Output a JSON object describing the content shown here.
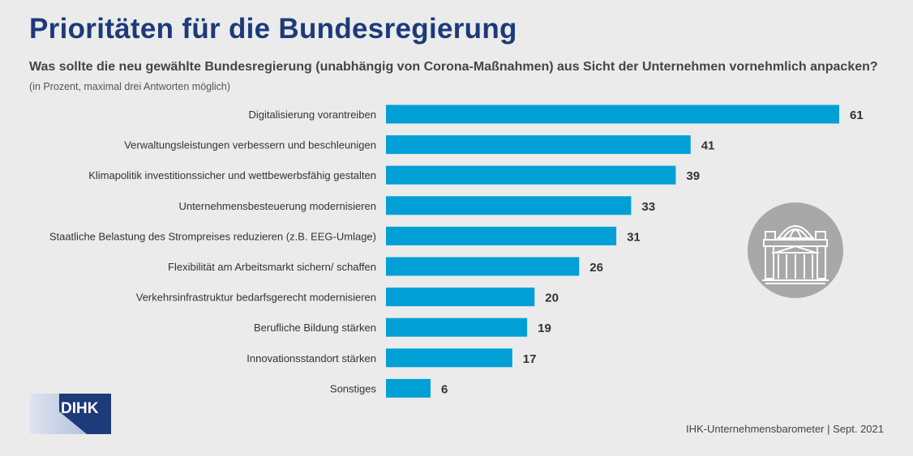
{
  "header": {
    "title": "Prioritäten für die Bundesregierung",
    "subtitle": "Was sollte die neu gewählte Bundesregierung (unabhängig von Corona-Maßnahmen) aus Sicht der Unternehmen vornehmlich anpacken?",
    "note": "(in Prozent, maximal drei Antworten möglich)"
  },
  "footer": {
    "source": "IHK-Unternehmensbarometer | Sept. 2021"
  },
  "logo": {
    "text": "DIHK"
  },
  "emblem": {
    "icon": "reichstag-building-icon"
  },
  "colors": {
    "bar": "#00a0d6",
    "title": "#1d3a7a",
    "background": "#ebebeb",
    "emblem": "#a8a8a8"
  },
  "chart_data": {
    "type": "bar",
    "orientation": "horizontal",
    "categories": [
      "Digitalisierung vorantreiben",
      "Verwaltungsleistungen verbessern und beschleunigen",
      "Klimapolitik investitionssicher und wettbewerbsfähig gestalten",
      "Unternehmensbesteuerung modernisieren",
      "Staatliche Belastung des Strompreises reduzieren (z.B. EEG-Umlage)",
      "Flexibilität am Arbeitsmarkt sichern/ schaffen",
      "Verkehrsinfrastruktur bedarfsgerecht modernisieren",
      "Berufliche Bildung stärken",
      "Innovationsstandort stärken",
      "Sonstiges"
    ],
    "values": [
      61,
      41,
      39,
      33,
      31,
      26,
      20,
      19,
      17,
      6
    ],
    "title": "Prioritäten für die Bundesregierung",
    "xlabel": "",
    "ylabel": "",
    "xlim": [
      0,
      61
    ],
    "grid": false,
    "data_labels": true
  }
}
